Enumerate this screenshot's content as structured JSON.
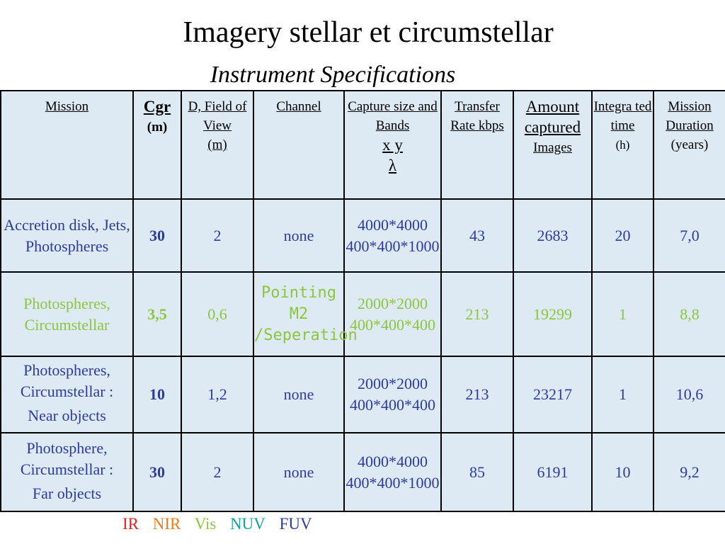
{
  "title": "Imagery stellar et circumstellar",
  "subtitle": "Instrument Specifications",
  "headers": {
    "mission": "Mission",
    "cgr": "Cgr",
    "cgr_unit": "(m)",
    "fov": "D, Field of View",
    "fov_unit": "(m)",
    "channel": "Channel",
    "capture": "Capture size and Bands",
    "capture_xy": "x y",
    "capture_lambda": "λ",
    "transfer": "Transfer Rate kbps",
    "amount": "Amount captured",
    "amount_unit": "Images",
    "integrated": "Integra ted time",
    "integrated_unit": "(h)",
    "duration": "Mission Duration",
    "duration_unit": "(years)"
  },
  "rows": [
    {
      "mission": "Accretion disk, Jets, Photospheres",
      "cgr": "30",
      "fov": "2",
      "channel": "none",
      "capture1": "4000*4000",
      "capture2": "400*400*1000",
      "transfer": "43",
      "amount": "2683",
      "integrated": "20",
      "duration": "7,0"
    },
    {
      "mission": "Photospheres, Circumstellar",
      "cgr": "3,5",
      "fov": "0,6",
      "channel": "Pointing M2 /Seperation",
      "capture1": "2000*2000",
      "capture2": "400*400*400",
      "transfer": "213",
      "amount": "19299",
      "integrated": "1",
      "duration": "8,8"
    },
    {
      "mission": "Photospheres, Circumstellar :",
      "mission2": "Near objects",
      "cgr": "10",
      "fov": "1,2",
      "channel": "none",
      "capture1": "2000*2000",
      "capture2": "400*400*400",
      "transfer": "213",
      "amount": "23217",
      "integrated": "1",
      "duration": "10,6"
    },
    {
      "mission": "Photosphere, Circumstellar :",
      "mission2": "Far objects",
      "cgr": "30",
      "fov": "2",
      "channel": "none",
      "capture1": "4000*4000",
      "capture2": "400*400*1000",
      "transfer": "85",
      "amount": "6191",
      "integrated": "10",
      "duration": "9,2"
    }
  ],
  "legend": [
    {
      "label": "IR",
      "color": "#e8231f"
    },
    {
      "label": "NIR",
      "color": "#f07b14"
    },
    {
      "label": "Vis",
      "color": "#8cc63f"
    },
    {
      "label": "NUV",
      "color": "#12a0a0"
    },
    {
      "label": "FUV",
      "color": "#2e3a9c"
    }
  ]
}
